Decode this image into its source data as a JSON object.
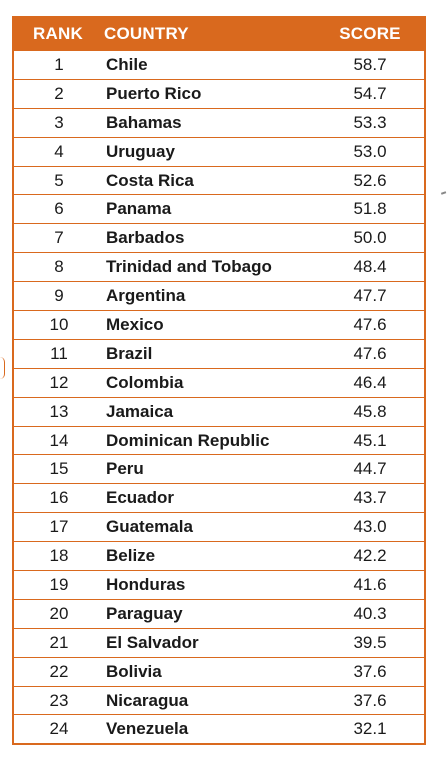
{
  "table": {
    "headers": {
      "rank": "RANK",
      "country": "COUNTRY",
      "score": "SCORE"
    },
    "rows": [
      {
        "rank": "1",
        "country": "Chile",
        "score": "58.7"
      },
      {
        "rank": "2",
        "country": "Puerto Rico",
        "score": "54.7"
      },
      {
        "rank": "3",
        "country": "Bahamas",
        "score": "53.3"
      },
      {
        "rank": "4",
        "country": "Uruguay",
        "score": "53.0"
      },
      {
        "rank": "5",
        "country": "Costa Rica",
        "score": "52.6"
      },
      {
        "rank": "6",
        "country": "Panama",
        "score": "51.8"
      },
      {
        "rank": "7",
        "country": "Barbados",
        "score": "50.0"
      },
      {
        "rank": "8",
        "country": "Trinidad and Tobago",
        "score": "48.4"
      },
      {
        "rank": "9",
        "country": "Argentina",
        "score": "47.7"
      },
      {
        "rank": "10",
        "country": "Mexico",
        "score": "47.6"
      },
      {
        "rank": "11",
        "country": "Brazil",
        "score": "47.6"
      },
      {
        "rank": "12",
        "country": "Colombia",
        "score": "46.4"
      },
      {
        "rank": "13",
        "country": "Jamaica",
        "score": "45.8"
      },
      {
        "rank": "14",
        "country": "Dominican Republic",
        "score": "45.1"
      },
      {
        "rank": "15",
        "country": "Peru",
        "score": "44.7"
      },
      {
        "rank": "16",
        "country": "Ecuador",
        "score": "43.7"
      },
      {
        "rank": "17",
        "country": "Guatemala",
        "score": "43.0"
      },
      {
        "rank": "18",
        "country": "Belize",
        "score": "42.2"
      },
      {
        "rank": "19",
        "country": "Honduras",
        "score": "41.6"
      },
      {
        "rank": "20",
        "country": "Paraguay",
        "score": "40.3"
      },
      {
        "rank": "21",
        "country": "El Salvador",
        "score": "39.5"
      },
      {
        "rank": "22",
        "country": "Bolivia",
        "score": "37.6"
      },
      {
        "rank": "23",
        "country": "Nicaragua",
        "score": "37.6"
      },
      {
        "rank": "24",
        "country": "Venezuela",
        "score": "32.1"
      }
    ]
  },
  "colors": {
    "accent": "#d9691e",
    "header_text": "#ffffff",
    "body_text": "#1a1a1a"
  }
}
